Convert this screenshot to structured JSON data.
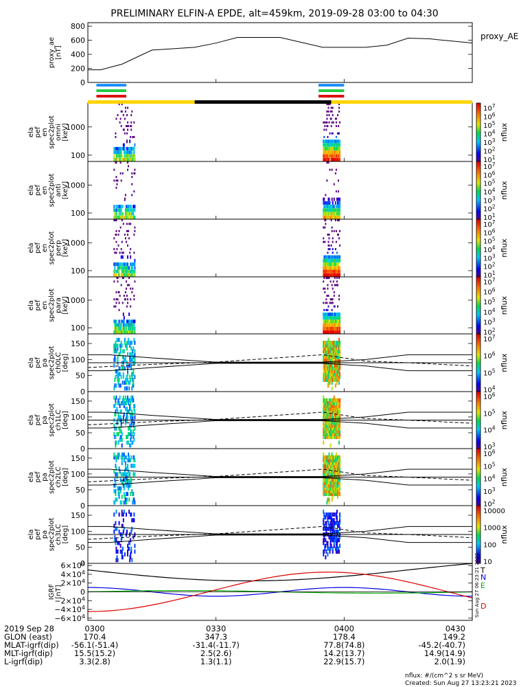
{
  "title": "PRELIMINARY ELFIN-A EPDE, alt=459km, 2019-09-28 03:00 to 04:30",
  "colors": {
    "sun_bar": "#FFD400",
    "shadow_bar": "#000000",
    "blue": "#1E90FF",
    "green": "#22CC44",
    "red": "#DD1111",
    "bx": "#0000DD",
    "by": "#00AA00",
    "bz": "#DD0000"
  },
  "chart_data": [
    {
      "type": "line",
      "panel": "proxy_ae",
      "ylabel": [
        "proxy_ae",
        "[nT]"
      ],
      "legend": "proxy_AE",
      "ylim": [
        0,
        850
      ],
      "yticks": [
        "800",
        "600",
        "400",
        "200",
        "0"
      ],
      "ytick_values": [
        800,
        600,
        400,
        200,
        0
      ],
      "x": [
        0,
        3,
        8,
        15,
        25,
        30,
        35,
        45,
        55,
        65,
        70,
        75,
        80,
        90
      ],
      "values": [
        180,
        180,
        260,
        460,
        500,
        560,
        640,
        640,
        500,
        500,
        530,
        630,
        620,
        560
      ]
    },
    {
      "type": "heatmap",
      "panel": "omni",
      "ylabel": [
        "ela",
        "pef",
        "en",
        "spec2plot",
        "omni",
        "[keV]"
      ],
      "yscale": "log",
      "ylim": [
        60,
        7000
      ],
      "yticks": [
        "1000",
        "100"
      ],
      "ytick_values": [
        1000,
        100
      ],
      "colorbar": {
        "label": "nflux",
        "ticks": [
          "10^7",
          "10^6",
          "10^5",
          "10^4",
          "10^3",
          "10^2",
          "10^1"
        ]
      }
    },
    {
      "type": "heatmap",
      "panel": "anti",
      "ylabel": [
        "ela",
        "pef",
        "en",
        "spec2plot",
        "anti",
        "[keV]"
      ],
      "yscale": "log",
      "ylim": [
        60,
        7000
      ],
      "yticks": [
        "1000",
        "100"
      ],
      "ytick_values": [
        1000,
        100
      ],
      "colorbar": {
        "label": "nflux",
        "ticks": [
          "10^7",
          "10^6",
          "10^5",
          "10^4",
          "10^3",
          "10^2",
          "10^1"
        ]
      }
    },
    {
      "type": "heatmap",
      "panel": "perp",
      "ylabel": [
        "ela",
        "pef",
        "en",
        "spec2plot",
        "perp",
        "[keV]"
      ],
      "yscale": "log",
      "ylim": [
        60,
        7000
      ],
      "yticks": [
        "1000",
        "100"
      ],
      "ytick_values": [
        1000,
        100
      ],
      "colorbar": {
        "label": "nflux",
        "ticks": [
          "10^7",
          "10^6",
          "10^5",
          "10^4",
          "10^3",
          "10^2",
          "10^1"
        ]
      }
    },
    {
      "type": "heatmap",
      "panel": "para",
      "ylabel": [
        "ela",
        "pef",
        "en",
        "spec2plot",
        "para",
        "[keV]"
      ],
      "yscale": "log",
      "ylim": [
        60,
        7000
      ],
      "yticks": [
        "1000",
        "100"
      ],
      "ytick_values": [
        1000,
        100
      ],
      "colorbar": {
        "label": "nflux",
        "ticks": [
          "10^7",
          "10^6",
          "10^5",
          "10^4",
          "10^3",
          "10^2"
        ]
      }
    },
    {
      "type": "heatmap",
      "panel": "ch0LC",
      "ylabel": [
        "ela",
        "pef",
        "pa",
        "spec2plot",
        "ch0LC",
        "[deg]"
      ],
      "ylim": [
        0,
        180
      ],
      "yticks": [
        "150",
        "100",
        "50",
        "0"
      ],
      "ytick_values": [
        150,
        100,
        50,
        0
      ],
      "colorbar": {
        "label": "nflux",
        "ticks": [
          "10^7",
          "10^6",
          "10^5",
          "10^4"
        ]
      }
    },
    {
      "type": "heatmap",
      "panel": "ch1LC",
      "ylabel": [
        "ela",
        "pef",
        "pa",
        "spec2plot",
        "ch1LC",
        "[deg]"
      ],
      "ylim": [
        0,
        180
      ],
      "yticks": [
        "150",
        "100",
        "50",
        "0"
      ],
      "ytick_values": [
        150,
        100,
        50,
        0
      ],
      "colorbar": {
        "label": "nflux",
        "ticks": [
          "10^6",
          "10^5",
          "10^4",
          "10^3"
        ]
      }
    },
    {
      "type": "heatmap",
      "panel": "ch2LC",
      "ylabel": [
        "ela",
        "pef",
        "pa",
        "spec2plot",
        "ch2LC",
        "[deg]"
      ],
      "ylim": [
        0,
        180
      ],
      "yticks": [
        "150",
        "100",
        "50",
        "0"
      ],
      "ytick_values": [
        150,
        100,
        50,
        0
      ],
      "colorbar": {
        "label": "nflux",
        "ticks": [
          "10^6",
          "10^5",
          "10^4",
          "10^3",
          "10^2"
        ]
      }
    },
    {
      "type": "heatmap",
      "panel": "ch3LC",
      "ylabel": [
        "ela",
        "pef",
        "pa",
        "spec2plot",
        "ch3LC",
        "[deg]"
      ],
      "ylim": [
        0,
        180
      ],
      "yticks": [
        "150",
        "100",
        "50",
        "0"
      ],
      "ytick_values": [
        150,
        100,
        50,
        0
      ],
      "colorbar": {
        "label": "nflux",
        "ticks": [
          "10000",
          "1000",
          "100",
          "10"
        ]
      }
    },
    {
      "type": "line",
      "panel": "igrf",
      "ylabel": [
        "IGRF",
        "[nT]"
      ],
      "ylim": [
        -65000,
        65000
      ],
      "yticks": [
        "6×10^4",
        "4×10^4",
        "2×10^4",
        "0",
        "−2×10^4",
        "−4×10^4",
        "−6×10^4"
      ],
      "ytick_values": [
        60000,
        40000,
        20000,
        0,
        -20000,
        -40000,
        -60000
      ],
      "legend": [
        "T",
        "N",
        "E",
        "D"
      ],
      "side_label": "Sun Aug 27 06:23:21 2023"
    }
  ],
  "x_axis": {
    "ticks": [
      "0300",
      "0330",
      "0400",
      "0430"
    ],
    "rows": [
      {
        "label": "2019 Sep 28",
        "values": [
          "0300",
          "0330",
          "0400",
          "0430"
        ]
      },
      {
        "label": "GLON (east)",
        "values": [
          "170.4",
          "347.3",
          "178.4",
          "149.2"
        ]
      },
      {
        "label": "MLAT-igrf(dip)",
        "values": [
          "-56.1(-51.4)",
          "-31.4(-11.7)",
          "77.8(74.8)",
          "-45.2(-40.7)"
        ]
      },
      {
        "label": "MLT-igrf(dip)",
        "values": [
          "15.5(15.2)",
          "2.5(2.6)",
          "14.2(13.7)",
          "14.9(14.9)"
        ]
      },
      {
        "label": "L-igrf(dip)",
        "values": [
          "3.3(2.8)",
          "1.3(1.1)",
          "22.9(15.7)",
          "2.0(1.9)"
        ]
      }
    ]
  },
  "footer": {
    "units": "nflux: #/(cm^2 s sr MeV)",
    "created": "Created: Sun Aug 27 13:23:21 2023"
  }
}
